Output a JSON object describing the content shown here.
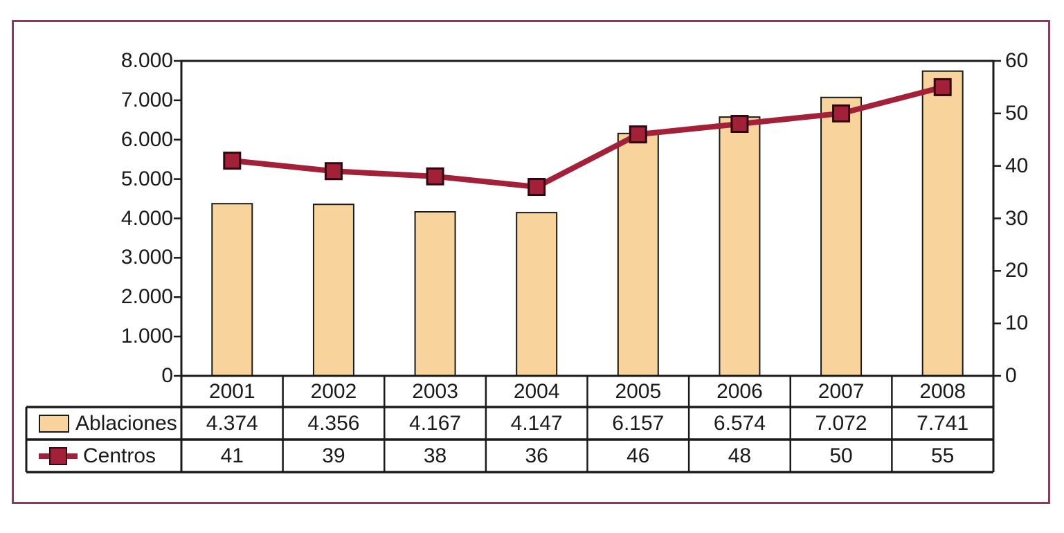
{
  "figure": {
    "border_color": "#8C3A5B",
    "background_color": "#FFFFFF",
    "axis_line_color": "#1A1A1A",
    "text_color": "#1A1A1A"
  },
  "chart_data": {
    "type": "bar",
    "subtype": "bar+line combo",
    "categories": [
      "2001",
      "2002",
      "2003",
      "2004",
      "2005",
      "2006",
      "2007",
      "2008"
    ],
    "series": [
      {
        "name": "Ablaciones",
        "type": "bar",
        "axis": "left",
        "values": [
          4374,
          4356,
          4167,
          4147,
          6157,
          6574,
          7072,
          7741
        ],
        "labels": [
          "4.374",
          "4.356",
          "4.167",
          "4.147",
          "6.157",
          "6.574",
          "7.072",
          "7.741"
        ],
        "fill_color": "#F8D39C",
        "border_color": "#1A1A1A"
      },
      {
        "name": "Centros",
        "type": "line",
        "axis": "right",
        "marker": "square",
        "values": [
          41,
          39,
          38,
          36,
          46,
          48,
          50,
          55
        ],
        "labels": [
          "41",
          "39",
          "38",
          "36",
          "46",
          "48",
          "50",
          "55"
        ],
        "line_color": "#A22038",
        "marker_border_color": "#30070F"
      }
    ],
    "left_axis": {
      "min": 0,
      "max": 8000,
      "tick_step": 1000,
      "tick_labels": [
        "8.000",
        "7.000",
        "6.000",
        "5.000",
        "4.000",
        "3.000",
        "2.000",
        "1.000",
        "0"
      ]
    },
    "right_axis": {
      "min": 0,
      "max": 60,
      "tick_step": 10,
      "tick_labels": [
        "60",
        "50",
        "40",
        "30",
        "20",
        "10",
        "0"
      ]
    },
    "grid": false,
    "legend_position": "table-left",
    "title": "",
    "xlabel": "",
    "ylabel": ""
  }
}
